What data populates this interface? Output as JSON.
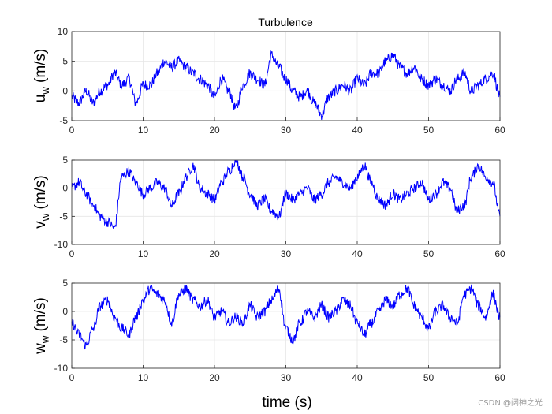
{
  "chart_data": [
    {
      "type": "line",
      "title": "Turbulence",
      "ylabel_main": "u",
      "ylabel_sub": "w",
      "ylabel_unit": " (m/s)",
      "xlabel": "",
      "xlim": [
        0,
        60
      ],
      "ylim": [
        -5,
        10
      ],
      "xticks": [
        0,
        10,
        20,
        30,
        40,
        50,
        60
      ],
      "yticks": [
        -5,
        0,
        5,
        10
      ],
      "grid": true,
      "color": "#0000ff",
      "series": [
        {
          "name": "u_w",
          "x": [
            0,
            1,
            2,
            3,
            4,
            5,
            6,
            7,
            8,
            9,
            10,
            11,
            12,
            13,
            14,
            15,
            16,
            17,
            18,
            19,
            20,
            21,
            22,
            23,
            24,
            25,
            26,
            27,
            28,
            29,
            30,
            31,
            32,
            33,
            34,
            35,
            36,
            37,
            38,
            39,
            40,
            41,
            42,
            43,
            44,
            45,
            46,
            47,
            48,
            49,
            50,
            51,
            52,
            53,
            54,
            55,
            56,
            57,
            58,
            59,
            60
          ],
          "values": [
            -1,
            -2,
            0,
            -2,
            0,
            1,
            3,
            1,
            2,
            -2,
            1,
            1,
            3,
            5,
            4,
            5,
            4,
            3,
            2,
            1,
            -1,
            2,
            0,
            -3,
            1,
            3,
            2,
            1,
            6,
            4,
            2,
            0,
            -1,
            0,
            -2,
            -4,
            -1,
            0,
            1,
            0,
            2,
            1,
            3,
            3,
            5,
            6,
            4,
            3,
            4,
            2,
            1,
            2,
            1,
            0,
            2,
            3,
            0,
            1,
            2,
            3,
            -1
          ]
        }
      ]
    },
    {
      "type": "line",
      "title": "",
      "ylabel_main": "v",
      "ylabel_sub": "w",
      "ylabel_unit": " (m/s)",
      "xlabel": "",
      "xlim": [
        0,
        60
      ],
      "ylim": [
        -10,
        5
      ],
      "xticks": [
        0,
        10,
        20,
        30,
        40,
        50,
        60
      ],
      "yticks": [
        -10,
        -5,
        0,
        5
      ],
      "grid": true,
      "color": "#0000ff",
      "series": [
        {
          "name": "v_w",
          "x": [
            0,
            1,
            2,
            3,
            4,
            5,
            6,
            7,
            8,
            9,
            10,
            11,
            12,
            13,
            14,
            15,
            16,
            17,
            18,
            19,
            20,
            21,
            22,
            23,
            24,
            25,
            26,
            27,
            28,
            29,
            30,
            31,
            32,
            33,
            34,
            35,
            36,
            37,
            38,
            39,
            40,
            41,
            42,
            43,
            44,
            45,
            46,
            47,
            48,
            49,
            50,
            51,
            52,
            53,
            54,
            55,
            56,
            57,
            58,
            59,
            60
          ],
          "values": [
            0,
            1,
            -1,
            -3,
            -5,
            -6,
            -7,
            2,
            3,
            1,
            -1,
            0,
            1,
            0,
            -3,
            -1,
            2,
            4,
            0,
            -1,
            -2,
            1,
            3,
            5,
            2,
            -1,
            -3,
            -2,
            -4,
            -5,
            -1,
            -2,
            -1,
            0,
            -2,
            -1,
            1,
            2,
            1,
            0,
            2,
            4,
            1,
            -2,
            -3,
            -1,
            -2,
            -1,
            0,
            1,
            -2,
            -1,
            1,
            0,
            -4,
            -3,
            2,
            4,
            2,
            1,
            -5
          ]
        }
      ]
    },
    {
      "type": "line",
      "title": "",
      "ylabel_main": "w",
      "ylabel_sub": "w",
      "ylabel_unit": " (m/s)",
      "xlabel": "time (s)",
      "xlim": [
        0,
        60
      ],
      "ylim": [
        -10,
        5
      ],
      "xticks": [
        0,
        10,
        20,
        30,
        40,
        50,
        60
      ],
      "yticks": [
        -10,
        -5,
        0,
        5
      ],
      "grid": true,
      "color": "#0000ff",
      "series": [
        {
          "name": "w_w",
          "x": [
            0,
            1,
            2,
            3,
            4,
            5,
            6,
            7,
            8,
            9,
            10,
            11,
            12,
            13,
            14,
            15,
            16,
            17,
            18,
            19,
            20,
            21,
            22,
            23,
            24,
            25,
            26,
            27,
            28,
            29,
            30,
            31,
            32,
            33,
            34,
            35,
            36,
            37,
            38,
            39,
            40,
            41,
            42,
            43,
            44,
            45,
            46,
            47,
            48,
            49,
            50,
            51,
            52,
            53,
            54,
            55,
            56,
            57,
            58,
            59,
            60
          ],
          "values": [
            -2,
            -4,
            -6,
            -3,
            1,
            2,
            -1,
            -3,
            -4,
            -1,
            2,
            4,
            3,
            2,
            -2,
            3,
            4,
            2,
            1,
            2,
            -1,
            0,
            -2,
            -1,
            -2,
            1,
            -1,
            0,
            2,
            4,
            -3,
            -5,
            -2,
            0,
            -1,
            1,
            -1,
            0,
            2,
            1,
            -2,
            -4,
            -2,
            0,
            2,
            1,
            3,
            4,
            1,
            -1,
            -3,
            0,
            1,
            -1,
            -2,
            3,
            4,
            1,
            -1,
            3,
            -1
          ]
        }
      ]
    }
  ],
  "watermark": "CSDN @阔神之光"
}
